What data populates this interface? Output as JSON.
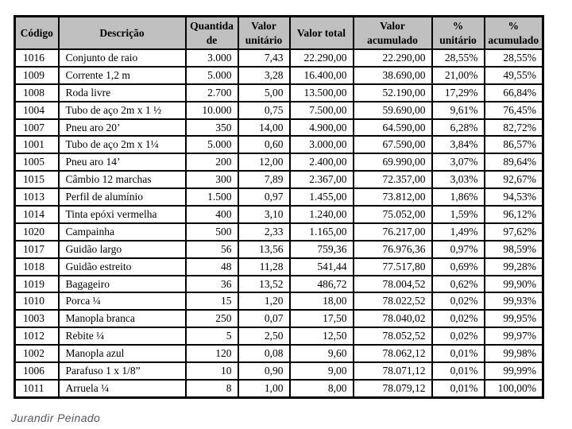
{
  "colors": {
    "header_bg": "#c0c0c0",
    "table_border": "#000000",
    "footer_text": "#54546a",
    "page_bg": "#ffffff"
  },
  "table": {
    "columns": [
      "Código",
      "Descrição",
      "Quantida\nde",
      "Valor\nunitário",
      "Valor total",
      "Valor\nacumulado",
      "%\nunitário",
      "%\nacumulado"
    ],
    "rows": [
      [
        "1016",
        "Conjunto de raio",
        "3.000",
        "7,43",
        "22.290,00",
        "22.290,00",
        "28,55%",
        "28,55%"
      ],
      [
        "1009",
        "Corrente 1,2 m",
        "5.000",
        "3,28",
        "16.400,00",
        "38.690,00",
        "21,00%",
        "49,55%"
      ],
      [
        "1008",
        "Roda livre",
        "2.700",
        "5,00",
        "13.500,00",
        "52.190,00",
        "17,29%",
        "66,84%"
      ],
      [
        "1004",
        "Tubo de aço 2m x 1 ½",
        "10.000",
        "0,75",
        "7.500,00",
        "59.690,00",
        "9,61%",
        "76,45%"
      ],
      [
        "1007",
        "Pneu aro 20’",
        "350",
        "14,00",
        "4.900,00",
        "64.590,00",
        "6,28%",
        "82,72%"
      ],
      [
        "1001",
        "Tubo de aço 2m x 1¼",
        "5.000",
        "0,60",
        "3.000,00",
        "67.590,00",
        "3,84%",
        "86,57%"
      ],
      [
        "1005",
        "Pneu aro 14’",
        "200",
        "12,00",
        "2.400,00",
        "69.990,00",
        "3,07%",
        "89,64%"
      ],
      [
        "1015",
        "Câmbio 12 marchas",
        "300",
        "7,89",
        "2.367,00",
        "72.357,00",
        "3,03%",
        "92,67%"
      ],
      [
        "1013",
        "Perfil de alumínio",
        "1.500",
        "0,97",
        "1.455,00",
        "73.812,00",
        "1,86%",
        "94,53%"
      ],
      [
        "1014",
        "Tinta epóxi vermelha",
        "400",
        "3,10",
        "1.240,00",
        "75.052,00",
        "1,59%",
        "96,12%"
      ],
      [
        "1020",
        "Campainha",
        "500",
        "2,33",
        "1.165,00",
        "76.217,00",
        "1,49%",
        "97,62%"
      ],
      [
        "1017",
        "Guidão largo",
        "56",
        "13,56",
        "759,36",
        "76.976,36",
        "0,97%",
        "98,59%"
      ],
      [
        "1018",
        "Guidão estreito",
        "48",
        "11,28",
        "541,44",
        "77.517,80",
        "0,69%",
        "99,28%"
      ],
      [
        "1019",
        "Bagageiro",
        "36",
        "13,52",
        "486,72",
        "78.004,52",
        "0,62%",
        "99,90%"
      ],
      [
        "1010",
        "Porca ¼",
        "15",
        "1,20",
        "18,00",
        "78.022,52",
        "0,02%",
        "99,93%"
      ],
      [
        "1003",
        "Manopla branca",
        "250",
        "0,07",
        "17,50",
        "78.040,02",
        "0,02%",
        "99,95%"
      ],
      [
        "1012",
        "Rebite ¼",
        "5",
        "2,50",
        "12,50",
        "78.052,52",
        "0,02%",
        "99,97%"
      ],
      [
        "1002",
        "Manopla azul",
        "120",
        "0,08",
        "9,60",
        "78.062,12",
        "0,01%",
        "99,98%"
      ],
      [
        "1006",
        "Parafuso 1 x 1/8”",
        "10",
        "0,90",
        "9,00",
        "78.071,12",
        "0,01%",
        "99,99%"
      ],
      [
        "1011",
        "Arruela ¼",
        "8",
        "1,00",
        "8,00",
        "78.079,12",
        "0,01%",
        "100,00%"
      ]
    ]
  },
  "footer": {
    "author": "Jurandir Peinado"
  }
}
